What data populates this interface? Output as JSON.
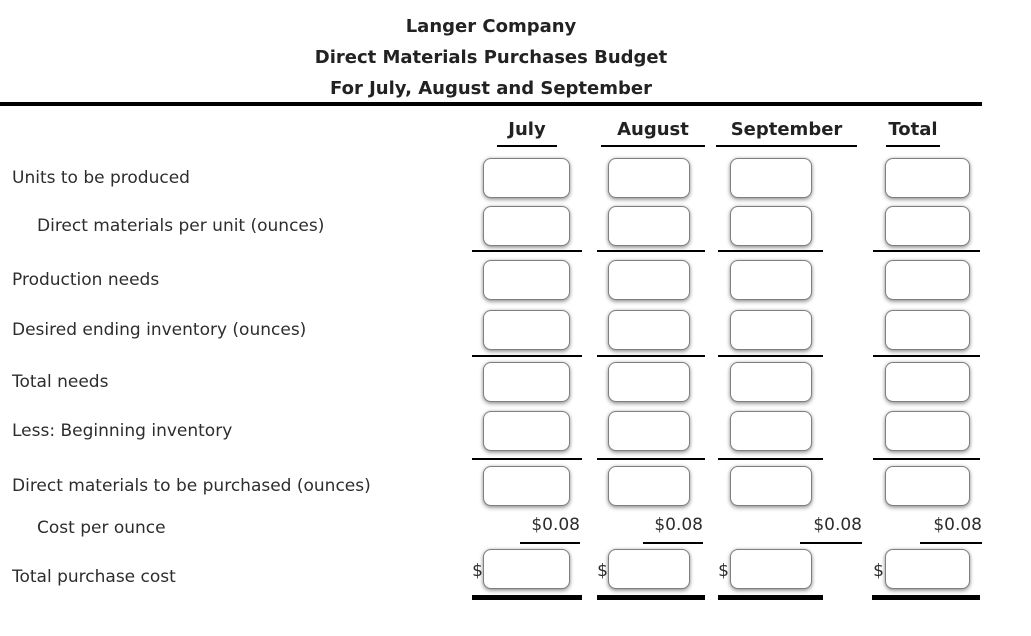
{
  "title": {
    "company": "Langer Company",
    "report": "Direct Materials Purchases Budget",
    "period": "For July, August and September"
  },
  "columns": [
    {
      "label": "July"
    },
    {
      "label": "August"
    },
    {
      "label": "September"
    },
    {
      "label": "Total"
    }
  ],
  "rows": [
    {
      "label": "Units to be produced"
    },
    {
      "label": "Direct materials per unit (ounces)"
    },
    {
      "label": "Production needs"
    },
    {
      "label": "Desired ending inventory (ounces)"
    },
    {
      "label": "Total needs"
    },
    {
      "label": "Less: Beginning inventory"
    },
    {
      "label": "Direct materials to be purchased (ounces)"
    },
    {
      "label": "Cost per ounce"
    },
    {
      "label": "Total purchase cost"
    }
  ],
  "cost_row": {
    "values": [
      "$0.08",
      "$0.08",
      "$0.08",
      "$0.08"
    ]
  },
  "currency": {
    "symbol": "$"
  },
  "inputs": {
    "value": "",
    "placeholder": ""
  },
  "colors": {
    "rule": "#000000",
    "text": "#2d2d2d",
    "box_border": "#7f7f7f"
  }
}
